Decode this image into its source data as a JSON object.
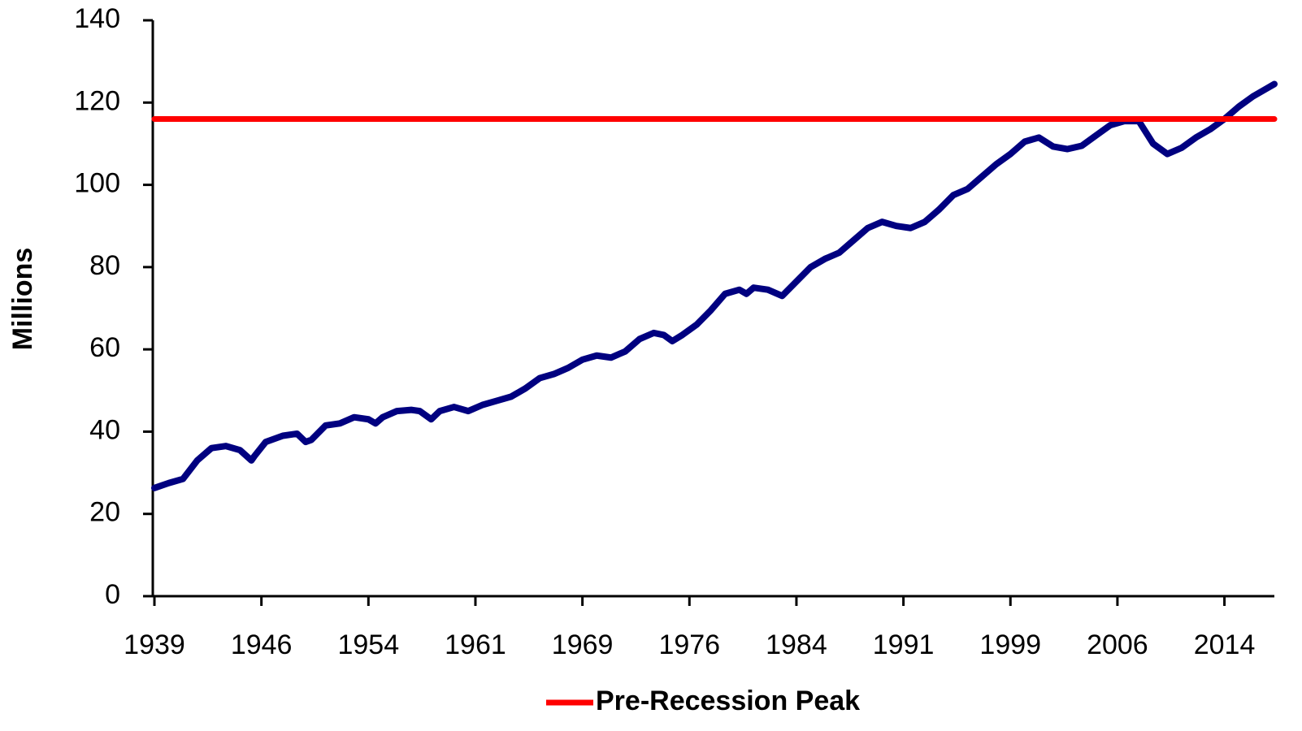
{
  "chart_data": {
    "type": "line",
    "y_label": "Millions",
    "x": [
      1939,
      1940,
      1941,
      1942,
      1943,
      1944,
      1945,
      1945.8,
      1946,
      1946.8,
      1948,
      1949,
      1949.6,
      1950,
      1951,
      1952,
      1953,
      1954,
      1954.5,
      1955,
      1956,
      1957,
      1957.6,
      1958.4,
      1959,
      1960,
      1961,
      1962,
      1963,
      1964,
      1965,
      1966,
      1967,
      1968,
      1969,
      1970,
      1971,
      1972,
      1973,
      1974,
      1974.7,
      1975.3,
      1976,
      1977,
      1978,
      1979,
      1980,
      1980.5,
      1981,
      1982,
      1983,
      1984,
      1985,
      1986,
      1987,
      1988,
      1989,
      1990,
      1991,
      1992,
      1993,
      1994,
      1995,
      1996,
      1997,
      1998,
      1999,
      2000,
      2001,
      2002,
      2003,
      2004,
      2005,
      2006,
      2007,
      2008,
      2009,
      2010,
      2011,
      2012,
      2013,
      2014,
      2015,
      2016,
      2017,
      2017.5
    ],
    "series": [
      {
        "color": "#000080",
        "values": [
          26.3,
          27.5,
          28.5,
          33,
          36,
          36.5,
          35.5,
          33,
          34,
          37.5,
          39,
          39.5,
          37.5,
          38,
          41.5,
          42,
          43.5,
          43,
          42,
          43.5,
          45,
          45.3,
          45,
          43,
          45,
          46,
          45,
          46.5,
          47.5,
          48.5,
          50.5,
          53,
          54,
          55.5,
          57.5,
          58.5,
          58,
          59.5,
          62.5,
          64,
          63.5,
          62,
          63.5,
          66,
          69.5,
          73.5,
          74.5,
          73.5,
          75,
          74.5,
          73,
          76.5,
          80,
          82,
          83.5,
          86.5,
          89.5,
          91,
          90,
          89.5,
          91,
          94,
          97.5,
          99,
          102,
          105,
          107.5,
          110.5,
          111.5,
          109.3,
          108.7,
          109.5,
          112,
          114.5,
          115.5,
          115.5,
          110,
          107.5,
          109,
          111.5,
          113.5,
          116,
          119,
          121.5,
          123.5,
          124.5
        ]
      },
      {
        "name": "Pre-Recession Peak",
        "color": "#ff0000",
        "x": [
          1939,
          2017.5
        ],
        "values": [
          116,
          116
        ]
      }
    ],
    "xlim": [
      1939,
      2017.5
    ],
    "xticks": [
      1939,
      {
        "value": 1946.5,
        "label": "1946"
      },
      1954,
      {
        "value": 1961.5,
        "label": "1961"
      },
      1969,
      {
        "value": 1976.5,
        "label": "1976"
      },
      1984,
      {
        "value": 1991.5,
        "label": "1991"
      },
      1999,
      {
        "value": 2006.5,
        "label": "2006"
      },
      2014
    ],
    "ylim": [
      0,
      140
    ],
    "yticks": [
      0,
      20,
      40,
      60,
      80,
      100,
      120,
      140
    ],
    "legend": "bottom"
  }
}
